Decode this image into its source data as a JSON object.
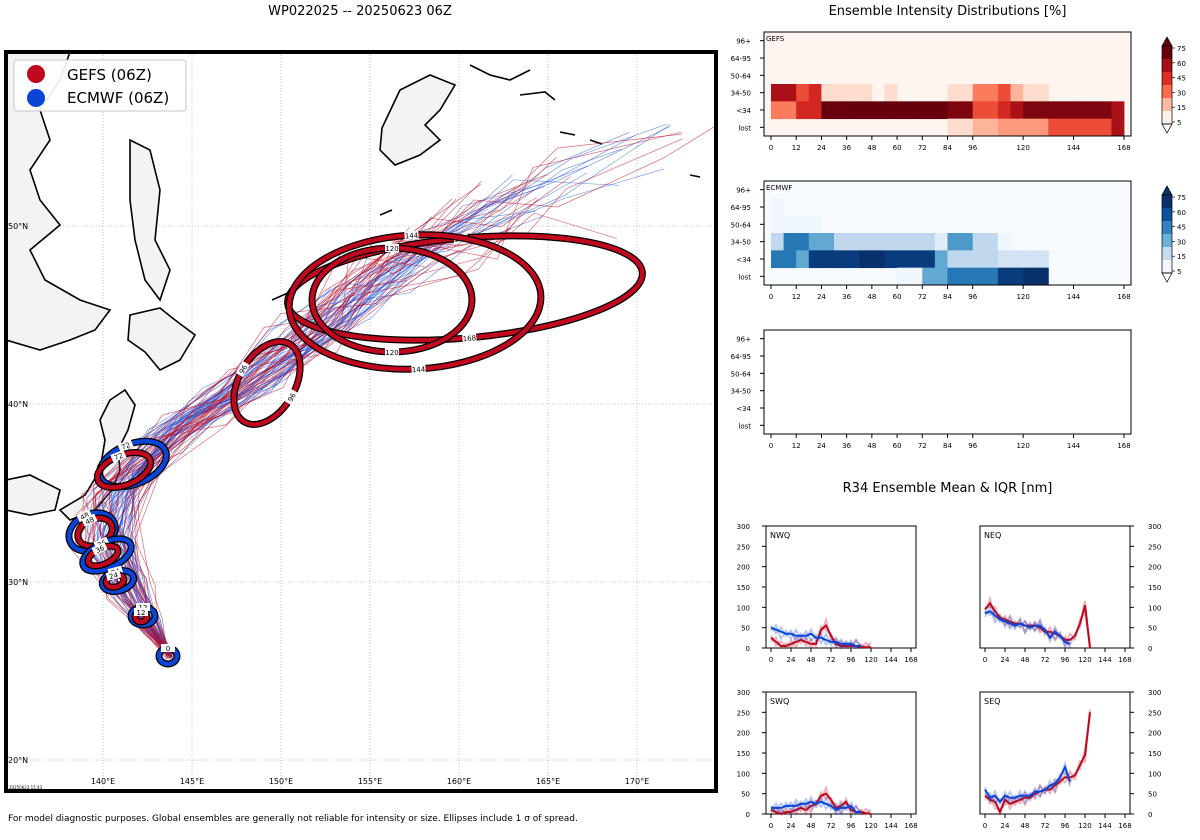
{
  "map": {
    "title": "WP022025 -- 20250623 06Z",
    "legend": [
      {
        "label": "GEFS (06Z)",
        "color": "#c0081e"
      },
      {
        "label": "ECMWF (06Z)",
        "color": "#0b45d8"
      }
    ],
    "lat_labels": [
      "20°N",
      "30°N",
      "40°N",
      "50°N"
    ],
    "lon_labels": [
      "140°E",
      "145°E",
      "150°E",
      "155°E",
      "160°E",
      "165°E",
      "170°E"
    ],
    "stamp": "20250623 15:43",
    "footnote": "For model diagnostic purposes. Global ensembles are generally not reliable for intensity or size. Ellipses include 1 σ of spread.",
    "gefs_ellipse_labels": [
      "12",
      "24",
      "36",
      "48",
      "72",
      "96",
      "120",
      "144",
      "168"
    ],
    "ecmwf_ellipse_labels": [
      "0",
      "12",
      "24",
      "36",
      "48",
      "72"
    ]
  },
  "intensity": {
    "title": "Ensemble Intensity Distributions [%]",
    "rows": [
      "96+",
      "64-95",
      "50-64",
      "34-50",
      "<34",
      "lost"
    ],
    "ticks": [
      "0",
      "12",
      "24",
      "36",
      "48",
      "60",
      "72",
      "84",
      "96",
      "120",
      "144",
      "168"
    ],
    "panels": [
      {
        "label": "GEFS",
        "colormap": "reds"
      },
      {
        "label": "ECMWF",
        "colormap": "blues"
      },
      {
        "label": "",
        "colormap": "none"
      }
    ],
    "colorbar_ticks": [
      "75",
      "60",
      "45",
      "30",
      "15",
      "5"
    ]
  },
  "r34": {
    "title": "R34 Ensemble Mean & IQR [nm]",
    "quadrants": [
      "NWQ",
      "NEQ",
      "SWQ",
      "SEQ"
    ],
    "yticks": [
      "0",
      "50",
      "100",
      "150",
      "200",
      "250",
      "300"
    ],
    "xticks": [
      "0",
      "24",
      "48",
      "72",
      "96",
      "120",
      "144",
      "168"
    ]
  },
  "chart_data": [
    {
      "type": "heatmap",
      "title": "GEFS",
      "x": [
        0,
        6,
        12,
        18,
        24,
        30,
        36,
        42,
        48,
        54,
        60,
        66,
        72,
        78,
        84,
        90,
        96,
        102,
        108,
        114,
        120,
        126,
        132,
        138,
        144,
        150,
        156,
        162,
        168
      ],
      "y": [
        "96+",
        "64-95",
        "50-64",
        "34-50",
        "<34",
        "lost"
      ],
      "values": [
        [
          0,
          0,
          0,
          0,
          0,
          0,
          0,
          0,
          0,
          0,
          0,
          0,
          0,
          0,
          0,
          0,
          0,
          0,
          0,
          0,
          0,
          0,
          0,
          0,
          0,
          0,
          0,
          0
        ],
        [
          0,
          0,
          0,
          0,
          0,
          0,
          0,
          0,
          0,
          0,
          0,
          0,
          0,
          0,
          0,
          0,
          0,
          0,
          0,
          0,
          0,
          0,
          0,
          0,
          0,
          0,
          0,
          0
        ],
        [
          0,
          0,
          0,
          0,
          0,
          0,
          0,
          0,
          0,
          0,
          0,
          0,
          0,
          0,
          0,
          0,
          0,
          0,
          0,
          0,
          0,
          0,
          0,
          0,
          0,
          0,
          0,
          0
        ],
        [
          60,
          60,
          40,
          50,
          10,
          10,
          10,
          10,
          0,
          10,
          0,
          0,
          0,
          0,
          10,
          10,
          30,
          30,
          40,
          20,
          10,
          10,
          0,
          0,
          0,
          0,
          0,
          0
        ],
        [
          30,
          30,
          50,
          50,
          85,
          85,
          85,
          85,
          90,
          90,
          85,
          85,
          85,
          85,
          70,
          70,
          40,
          40,
          50,
          60,
          70,
          70,
          70,
          70,
          70,
          70,
          70,
          60
        ],
        [
          0,
          0,
          0,
          0,
          0,
          0,
          0,
          0,
          0,
          0,
          0,
          0,
          0,
          0,
          10,
          10,
          20,
          20,
          25,
          25,
          25,
          25,
          40,
          40,
          40,
          40,
          40,
          60
        ]
      ],
      "colorbar_range": [
        5,
        75
      ]
    },
    {
      "type": "heatmap",
      "title": "ECMWF",
      "x": [
        0,
        6,
        12,
        18,
        24,
        30,
        36,
        42,
        48,
        54,
        60,
        66,
        72,
        78,
        84,
        90,
        96,
        102,
        108,
        114,
        120,
        126,
        132,
        138,
        144,
        150,
        156,
        162,
        168
      ],
      "y": [
        "96+",
        "64-95",
        "50-64",
        "34-50",
        "<34",
        "lost"
      ],
      "values": [
        [
          0,
          0,
          0,
          0,
          0,
          0,
          0,
          0,
          0,
          0,
          0,
          0,
          0,
          0,
          0,
          0,
          0,
          0,
          0,
          0,
          0,
          0,
          0,
          0,
          0,
          0,
          0,
          0
        ],
        [
          5,
          0,
          0,
          0,
          0,
          0,
          0,
          0,
          0,
          0,
          0,
          0,
          0,
          0,
          0,
          0,
          0,
          0,
          0,
          0,
          0,
          0,
          0,
          0,
          0,
          0,
          0,
          0
        ],
        [
          5,
          5,
          5,
          5,
          0,
          0,
          0,
          0,
          0,
          0,
          0,
          0,
          0,
          0,
          0,
          0,
          0,
          0,
          0,
          0,
          0,
          0,
          0,
          0,
          0,
          0,
          0,
          0
        ],
        [
          20,
          50,
          50,
          35,
          35,
          20,
          20,
          20,
          20,
          20,
          20,
          20,
          20,
          10,
          40,
          40,
          20,
          20,
          5,
          0,
          0,
          0,
          0,
          0,
          0,
          0,
          0,
          0
        ],
        [
          50,
          50,
          35,
          70,
          70,
          70,
          70,
          95,
          95,
          70,
          70,
          70,
          70,
          35,
          20,
          20,
          20,
          20,
          15,
          15,
          15,
          15,
          0,
          0,
          0,
          0,
          0,
          0
        ],
        [
          0,
          0,
          0,
          0,
          0,
          0,
          0,
          0,
          0,
          0,
          5,
          5,
          35,
          35,
          50,
          50,
          50,
          50,
          70,
          70,
          95,
          95,
          0,
          0,
          0,
          0,
          0,
          0
        ]
      ],
      "colorbar_range": [
        5,
        75
      ]
    },
    {
      "type": "line",
      "title": "NWQ",
      "ylim": [
        0,
        300
      ],
      "xlim": [
        0,
        168
      ],
      "x": [
        0,
        6,
        12,
        18,
        24,
        30,
        36,
        42,
        48,
        54,
        60,
        66,
        72,
        78,
        84,
        90,
        96,
        102,
        108,
        114,
        120
      ],
      "series": [
        {
          "name": "GEFS",
          "values": [
            25,
            15,
            5,
            5,
            10,
            15,
            20,
            15,
            10,
            10,
            45,
            55,
            30,
            10,
            5,
            5,
            5,
            5,
            3,
            2,
            2
          ]
        },
        {
          "name": "ECMWF",
          "values": [
            50,
            45,
            40,
            35,
            35,
            30,
            30,
            30,
            35,
            25,
            25,
            20,
            15,
            15,
            10,
            10,
            10,
            5,
            5,
            null,
            null
          ]
        }
      ]
    },
    {
      "type": "line",
      "title": "NEQ",
      "ylim": [
        0,
        300
      ],
      "xlim": [
        0,
        168
      ],
      "x": [
        0,
        6,
        12,
        18,
        24,
        30,
        36,
        42,
        48,
        54,
        60,
        66,
        72,
        78,
        84,
        90,
        96,
        102,
        108,
        114,
        120,
        126
      ],
      "series": [
        {
          "name": "GEFS",
          "values": [
            95,
            110,
            90,
            75,
            70,
            65,
            60,
            60,
            55,
            55,
            55,
            50,
            40,
            40,
            35,
            30,
            20,
            20,
            30,
            60,
            105,
            0
          ]
        },
        {
          "name": "ECMWF",
          "values": [
            85,
            90,
            80,
            70,
            65,
            60,
            55,
            60,
            55,
            50,
            55,
            55,
            45,
            25,
            40,
            30,
            15,
            10,
            null,
            null,
            null,
            null
          ]
        }
      ]
    },
    {
      "type": "line",
      "title": "SWQ",
      "ylim": [
        0,
        300
      ],
      "xlim": [
        0,
        168
      ],
      "x": [
        0,
        6,
        12,
        18,
        24,
        30,
        36,
        42,
        48,
        54,
        60,
        66,
        72,
        78,
        84,
        90,
        96,
        102,
        108,
        114,
        120
      ],
      "series": [
        {
          "name": "GEFS",
          "values": [
            10,
            5,
            0,
            5,
            5,
            10,
            15,
            10,
            20,
            25,
            45,
            50,
            35,
            15,
            20,
            30,
            10,
            5,
            5,
            2,
            0
          ]
        },
        {
          "name": "ECMWF",
          "values": [
            15,
            15,
            15,
            20,
            20,
            20,
            25,
            25,
            30,
            25,
            30,
            25,
            20,
            10,
            15,
            15,
            20,
            5,
            5,
            null,
            null
          ]
        }
      ]
    },
    {
      "type": "line",
      "title": "SEQ",
      "ylim": [
        0,
        300
      ],
      "xlim": [
        0,
        168
      ],
      "x": [
        0,
        6,
        12,
        18,
        24,
        30,
        36,
        42,
        48,
        54,
        60,
        66,
        72,
        78,
        84,
        90,
        96,
        102,
        108,
        114,
        120,
        126
      ],
      "series": [
        {
          "name": "GEFS",
          "values": [
            45,
            35,
            30,
            5,
            35,
            25,
            30,
            35,
            40,
            40,
            50,
            55,
            60,
            60,
            70,
            80,
            90,
            90,
            95,
            120,
            145,
            250
          ]
        },
        {
          "name": "ECMWF",
          "values": [
            60,
            40,
            45,
            30,
            45,
            40,
            40,
            45,
            45,
            45,
            55,
            55,
            60,
            70,
            75,
            90,
            115,
            80,
            null,
            null,
            null,
            null
          ]
        }
      ]
    }
  ]
}
